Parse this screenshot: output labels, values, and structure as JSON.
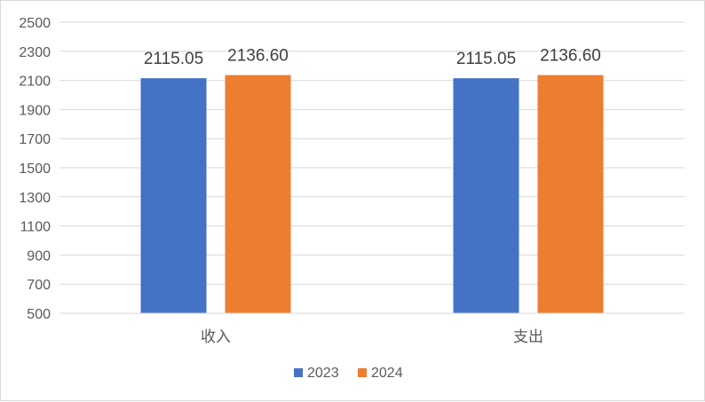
{
  "chart_data": {
    "type": "bar",
    "categories": [
      "收入",
      "支出"
    ],
    "series": [
      {
        "name": "2023",
        "values": [
          2115.05,
          2115.05
        ],
        "labels": [
          "2115.05",
          "2115.05"
        ],
        "color": "#4472c4"
      },
      {
        "name": "2024",
        "values": [
          2136.6,
          2136.6
        ],
        "labels": [
          "2136.60",
          "2136.60"
        ],
        "color": "#ed7d31"
      }
    ],
    "ylim": [
      500,
      2500
    ],
    "yticks": [
      "500",
      "700",
      "900",
      "1100",
      "1300",
      "1500",
      "1700",
      "1900",
      "2100",
      "2300",
      "2500"
    ],
    "grid": true,
    "legend_position": "bottom",
    "gridline_color": "#d9d9d9"
  }
}
